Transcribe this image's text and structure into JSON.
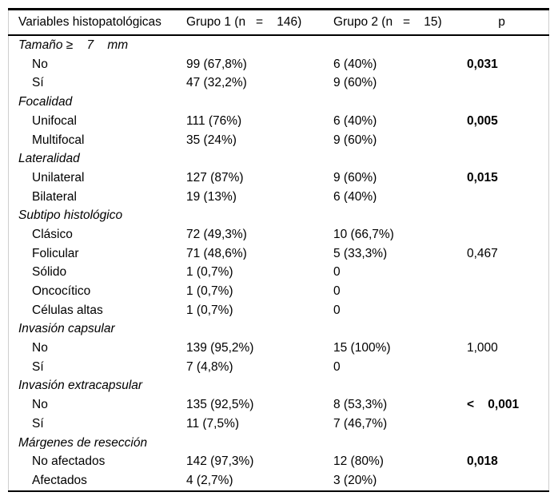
{
  "colors": {
    "text": "#000000",
    "heavy_rule": "#000000",
    "side_border": "#cfcfcf",
    "background": "#ffffff"
  },
  "table": {
    "columns": {
      "variables": "Variables histopatológicas",
      "grupo1": "Grupo 1 (n   =    146)",
      "grupo2": "Grupo 2 (n   =    15)",
      "p": "p"
    },
    "sections": [
      {
        "header": "Tamaño ≥    7    mm",
        "rows": [
          {
            "label": "No",
            "g1": "99 (67,8%)",
            "g2": "6 (40%)",
            "p": "0,031",
            "p_bold": true
          },
          {
            "label": "Sí",
            "g1": "47 (32,2%)",
            "g2": "9 (60%)",
            "p": "",
            "p_bold": false
          }
        ]
      },
      {
        "header": "Focalidad",
        "rows": [
          {
            "label": "Unifocal",
            "g1": "111 (76%)",
            "g2": "6 (40%)",
            "p": "0,005",
            "p_bold": true
          },
          {
            "label": "Multifocal",
            "g1": "35 (24%)",
            "g2": "9 (60%)",
            "p": "",
            "p_bold": false
          }
        ]
      },
      {
        "header": "Lateralidad",
        "rows": [
          {
            "label": "Unilateral",
            "g1": "127 (87%)",
            "g2": "9 (60%)",
            "p": "0,015",
            "p_bold": true
          },
          {
            "label": "Bilateral",
            "g1": "19 (13%)",
            "g2": "6 (40%)",
            "p": "",
            "p_bold": false
          }
        ]
      },
      {
        "header": "Subtipo histológico",
        "rows": [
          {
            "label": "Clásico",
            "g1": "72 (49,3%)",
            "g2": "10 (66,7%)",
            "p": "",
            "p_bold": false
          },
          {
            "label": "Folicular",
            "g1": "71 (48,6%)",
            "g2": "5 (33,3%)",
            "p": "0,467",
            "p_bold": false
          },
          {
            "label": "Sólido",
            "g1": "1 (0,7%)",
            "g2": "0",
            "p": "",
            "p_bold": false
          },
          {
            "label": "Oncocítico",
            "g1": "1 (0,7%)",
            "g2": "0",
            "p": "",
            "p_bold": false
          },
          {
            "label": "Células altas",
            "g1": "1 (0,7%)",
            "g2": "0",
            "p": "",
            "p_bold": false
          }
        ]
      },
      {
        "header": "Invasión capsular",
        "rows": [
          {
            "label": "No",
            "g1": "139 (95,2%)",
            "g2": "15 (100%)",
            "p": "1,000",
            "p_bold": false
          },
          {
            "label": "Sí",
            "g1": "7 (4,8%)",
            "g2": "0",
            "p": "",
            "p_bold": false
          }
        ]
      },
      {
        "header": "Invasión extracapsular",
        "rows": [
          {
            "label": "No",
            "g1": "135 (92,5%)",
            "g2": "8 (53,3%)",
            "p": "<    0,001",
            "p_bold": true
          },
          {
            "label": "Sí",
            "g1": "11 (7,5%)",
            "g2": "7 (46,7%)",
            "p": "",
            "p_bold": false
          }
        ]
      },
      {
        "header": "Márgenes de resección",
        "rows": [
          {
            "label": "No afectados",
            "g1": "142 (97,3%)",
            "g2": "12 (80%)",
            "p": "0,018",
            "p_bold": true
          },
          {
            "label": "Afectados",
            "g1": "4 (2,7%)",
            "g2": "3 (20%)",
            "p": "",
            "p_bold": false
          }
        ]
      }
    ]
  }
}
